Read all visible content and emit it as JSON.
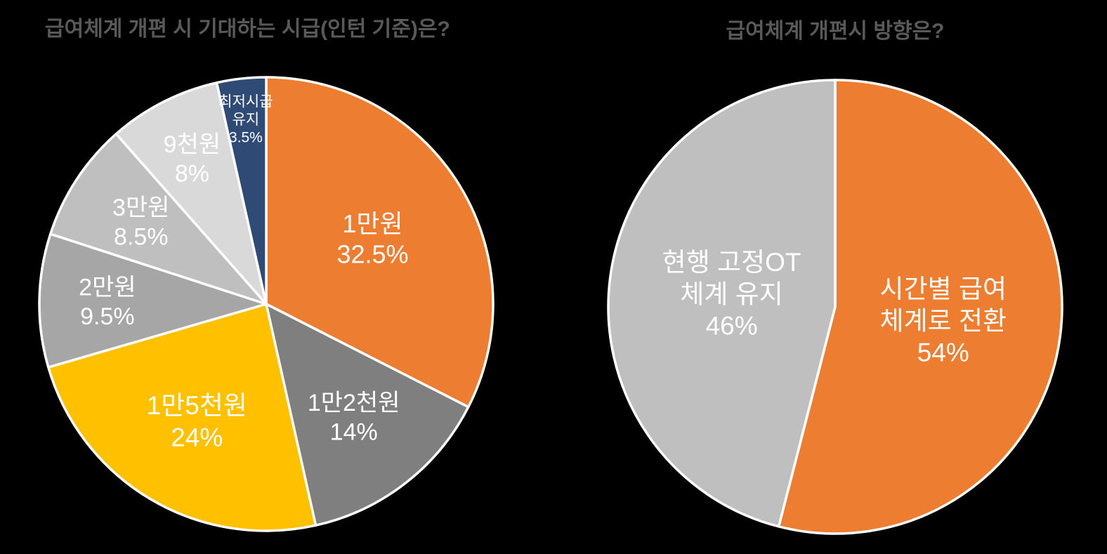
{
  "page": {
    "background_color": "#000000",
    "title_color": "#595959",
    "label_text_color": "#FFFFFF",
    "slice_border_color": "#FFFFFF"
  },
  "chart_data": [
    {
      "type": "pie",
      "title": "급여체계 개편 시 기대하는 시급(인턴 기준)은?",
      "start_angle": "12-oclock",
      "direction": "clockwise",
      "legend": "none",
      "labels_position": "inside",
      "slices": [
        {
          "category": "1만원",
          "value_pct": 32.5,
          "label_lines": [
            "1만원",
            "32.5%"
          ],
          "color": "#ED7D31",
          "label_r": 0.55,
          "label_font_px": 36
        },
        {
          "category": "1만2천원",
          "value_pct": 14,
          "label_lines": [
            "1만2천원",
            "14%"
          ],
          "color": "#7F7F7F",
          "label_r": 0.63,
          "label_font_px": 34
        },
        {
          "category": "1만5천원",
          "value_pct": 24,
          "label_lines": [
            "1만5천원",
            "24%"
          ],
          "color": "#FFC000",
          "label_r": 0.6,
          "label_font_px": 37
        },
        {
          "category": "2만원",
          "value_pct": 9.5,
          "label_lines": [
            "2만원",
            "9.5%"
          ],
          "color": "#A6A6A6",
          "label_r": 0.7,
          "label_font_px": 34
        },
        {
          "category": "3만원",
          "value_pct": 8.5,
          "label_lines": [
            "3만원",
            "8.5%"
          ],
          "color": "#BFBFBF",
          "label_r": 0.66,
          "label_font_px": 34
        },
        {
          "category": "9천원",
          "value_pct": 8,
          "label_lines": [
            "9천원",
            "8%"
          ],
          "color": "#D9D9D9",
          "label_r": 0.72,
          "label_font_px": 34
        },
        {
          "category": "최저시급 유지",
          "value_pct": 3.5,
          "label_lines": [
            "최저시급",
            "유지",
            "3.5%"
          ],
          "color": "#2E4A75",
          "label_r": 0.82,
          "label_font_px": 21
        }
      ]
    },
    {
      "type": "pie",
      "title": "급여체계 개편시 방향은?",
      "start_angle": "12-oclock",
      "direction": "clockwise",
      "legend": "none",
      "labels_position": "inside",
      "slices": [
        {
          "category": "시간별 급여 체계로 전환",
          "value_pct": 54,
          "label_lines": [
            "시간별 급여",
            "체계로 전환",
            "54%"
          ],
          "color": "#ED7D31",
          "label_r": 0.48,
          "label_font_px": 37
        },
        {
          "category": "현행 고정OT 체계 유지",
          "value_pct": 46,
          "label_lines": [
            "현행 고정OT",
            "체계 유지",
            "46%"
          ],
          "color": "#BFBFBF",
          "label_r": 0.46,
          "label_font_px": 37
        }
      ]
    }
  ]
}
